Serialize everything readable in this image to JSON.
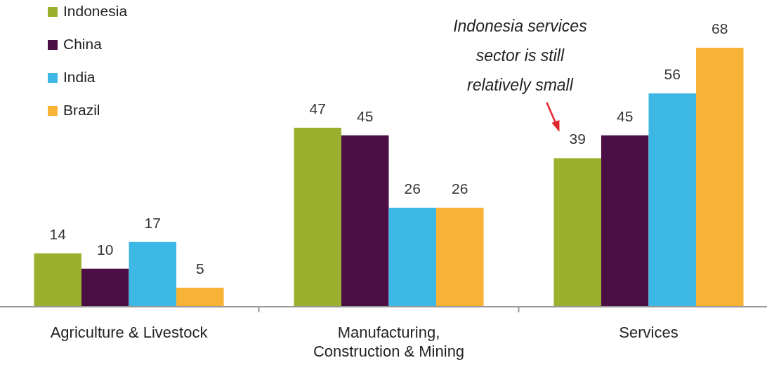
{
  "chart_data": {
    "type": "bar",
    "categories": [
      "Agriculture & Livestock",
      "Manufacturing, Construction & Mining",
      "Services"
    ],
    "series": [
      {
        "name": "Indonesia",
        "color": "#9bb02f",
        "values": [
          14,
          47,
          39
        ]
      },
      {
        "name": "China",
        "color": "#4b0f45",
        "values": [
          10,
          45,
          45
        ]
      },
      {
        "name": "India",
        "color": "#3db7e4",
        "values": [
          17,
          26,
          56
        ]
      },
      {
        "name": "Brazil",
        "color": "#f8b336",
        "values": [
          5,
          26,
          68
        ]
      }
    ],
    "data_labels": true,
    "legend": "top left",
    "annotations": [
      "Indonesia services sector is still relatively small"
    ]
  }
}
